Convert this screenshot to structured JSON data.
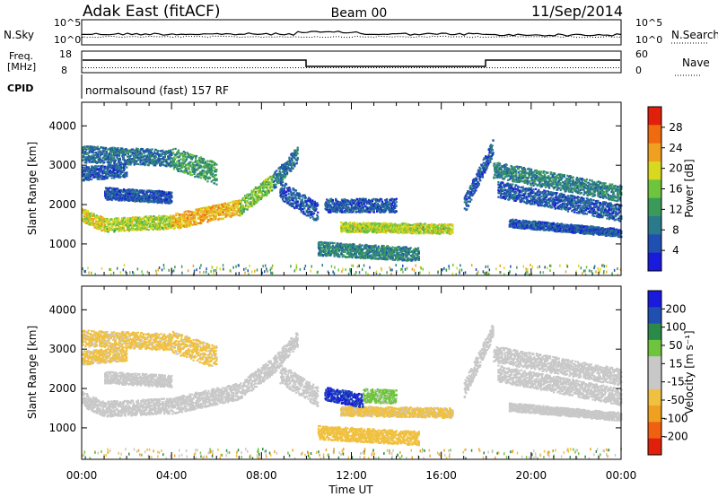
{
  "header": {
    "title": "Adak East (fitACF)",
    "beam": "Beam 00",
    "date": "11/Sep/2014"
  },
  "noise_panel": {
    "left_label": "N.Sky",
    "right_label": "N.Search",
    "left_ticks": [
      "10^5",
      "10^0"
    ],
    "right_ticks": [
      "10^5",
      "10^0"
    ]
  },
  "freq_panel": {
    "left_label_line1": "Freq.",
    "left_label_line2": "[MHz]",
    "right_label": "Nave",
    "left_ticks": [
      "18",
      "8"
    ],
    "right_ticks": [
      "60",
      "0"
    ]
  },
  "cpid": {
    "label": "CPID",
    "text": "normalsound (fast) 157 RF"
  },
  "chart_data": [
    {
      "type": "heatmap",
      "name": "power",
      "ylabel": "Slant Range [km]",
      "ylim": [
        200,
        4600
      ],
      "yticks": [
        "4000",
        "3000",
        "2000",
        "1000"
      ],
      "x_ticks": [
        "00:00",
        "04:00",
        "08:00",
        "12:00",
        "16:00",
        "20:00",
        "00:00"
      ],
      "colorbar": {
        "label": "Power [dB]",
        "ticks": [
          "28",
          "24",
          "20",
          "16",
          "12",
          "8",
          "4"
        ],
        "range": [
          0,
          32
        ],
        "colors": [
          "#1a1adc",
          "#1f4fb0",
          "#2a7a8c",
          "#3a9a5a",
          "#6ec43c",
          "#d8d820",
          "#f0a020",
          "#f06a10",
          "#e0200a"
        ]
      },
      "bands": [
        {
          "start": 0.0,
          "end": 1.0,
          "r0": 1750,
          "r1": 1500,
          "dr": 250,
          "v": 20
        },
        {
          "start": 1.0,
          "end": 4.0,
          "r0": 1500,
          "r1": 1580,
          "dr": 250,
          "v": 18
        },
        {
          "start": 4.0,
          "end": 7.0,
          "r0": 1580,
          "r1": 1950,
          "dr": 280,
          "v": 22
        },
        {
          "start": 7.0,
          "end": 8.5,
          "r0": 1950,
          "r1": 2600,
          "dr": 300,
          "v": 16
        },
        {
          "start": 8.5,
          "end": 9.6,
          "r0": 2600,
          "r1": 3300,
          "dr": 300,
          "v": 8
        },
        {
          "start": 1.0,
          "end": 4.0,
          "r0": 2300,
          "r1": 2200,
          "dr": 220,
          "v": 6
        },
        {
          "start": 0.0,
          "end": 4.0,
          "r0": 3300,
          "r1": 3200,
          "dr": 300,
          "v": 8
        },
        {
          "start": 4.0,
          "end": 6.0,
          "r0": 3200,
          "r1": 2800,
          "dr": 400,
          "v": 12
        },
        {
          "start": 0.0,
          "end": 2.0,
          "r0": 2800,
          "r1": 2900,
          "dr": 250,
          "v": 6
        },
        {
          "start": 8.8,
          "end": 10.5,
          "r0": 2400,
          "r1": 1800,
          "dr": 350,
          "v": 6
        },
        {
          "start": 11.5,
          "end": 16.5,
          "r0": 1450,
          "r1": 1400,
          "dr": 180,
          "v": 18
        },
        {
          "start": 10.8,
          "end": 14.0,
          "r0": 2000,
          "r1": 2000,
          "dr": 250,
          "v": 6
        },
        {
          "start": 10.5,
          "end": 15.0,
          "r0": 900,
          "r1": 750,
          "dr": 250,
          "v": 10
        },
        {
          "start": 17.0,
          "end": 18.3,
          "r0": 2000,
          "r1": 3500,
          "dr": 300,
          "v": 6
        },
        {
          "start": 18.3,
          "end": 24.0,
          "r0": 2900,
          "r1": 2300,
          "dr": 300,
          "v": 10
        },
        {
          "start": 18.5,
          "end": 24.0,
          "r0": 2400,
          "r1": 1800,
          "dr": 300,
          "v": 6
        },
        {
          "start": 19.0,
          "end": 24.0,
          "r0": 1550,
          "r1": 1300,
          "dr": 150,
          "v": 6
        }
      ]
    },
    {
      "type": "heatmap",
      "name": "velocity",
      "ylabel": "Slant Range [km]",
      "xlabel": "Time UT",
      "ylim": [
        200,
        4600
      ],
      "yticks": [
        "4000",
        "3000",
        "2000",
        "1000"
      ],
      "x_ticks": [
        "00:00",
        "04:00",
        "08:00",
        "12:00",
        "16:00",
        "20:00",
        "00:00"
      ],
      "colorbar": {
        "label": "Velocity [m s⁻¹]",
        "ticks": [
          "200",
          "100",
          "50",
          "15",
          "-15",
          "-50",
          "-100",
          "-200"
        ],
        "range": [
          -250,
          250
        ],
        "colors": [
          "#e0200a",
          "#f06010",
          "#f0a020",
          "#f0c040",
          "#c8c8c8",
          "#c8c8c8",
          "#6ec43c",
          "#2a8a4a",
          "#1f4fb0",
          "#1a1adc"
        ]
      },
      "bands": [
        {
          "start": 0.0,
          "end": 1.0,
          "r0": 1750,
          "r1": 1500,
          "dr": 280,
          "v": 0
        },
        {
          "start": 1.0,
          "end": 4.0,
          "r0": 1500,
          "r1": 1580,
          "dr": 280,
          "v": 0
        },
        {
          "start": 4.0,
          "end": 7.0,
          "r0": 1580,
          "r1": 1950,
          "dr": 300,
          "v": 0
        },
        {
          "start": 7.0,
          "end": 8.5,
          "r0": 1950,
          "r1": 2600,
          "dr": 300,
          "v": 0
        },
        {
          "start": 8.5,
          "end": 9.6,
          "r0": 2600,
          "r1": 3300,
          "dr": 300,
          "v": -10
        },
        {
          "start": 1.0,
          "end": 4.0,
          "r0": 2300,
          "r1": 2200,
          "dr": 220,
          "v": 0
        },
        {
          "start": 0.0,
          "end": 4.0,
          "r0": 3300,
          "r1": 3200,
          "dr": 300,
          "v": -60
        },
        {
          "start": 4.0,
          "end": 6.0,
          "r0": 3200,
          "r1": 2800,
          "dr": 400,
          "v": -60
        },
        {
          "start": 0.0,
          "end": 2.0,
          "r0": 2800,
          "r1": 2900,
          "dr": 250,
          "v": -60
        },
        {
          "start": 8.8,
          "end": 10.5,
          "r0": 2400,
          "r1": 1800,
          "dr": 350,
          "v": 0
        },
        {
          "start": 11.5,
          "end": 16.5,
          "r0": 1450,
          "r1": 1400,
          "dr": 180,
          "v": -60
        },
        {
          "start": 10.8,
          "end": 12.5,
          "r0": 1900,
          "r1": 1700,
          "dr": 250,
          "v": 200
        },
        {
          "start": 12.5,
          "end": 14.0,
          "r0": 1850,
          "r1": 1800,
          "dr": 250,
          "v": 60
        },
        {
          "start": 10.5,
          "end": 15.0,
          "r0": 900,
          "r1": 750,
          "dr": 250,
          "v": -70
        },
        {
          "start": 17.0,
          "end": 18.3,
          "r0": 2000,
          "r1": 3500,
          "dr": 300,
          "v": 0
        },
        {
          "start": 18.3,
          "end": 24.0,
          "r0": 2900,
          "r1": 2300,
          "dr": 300,
          "v": 0
        },
        {
          "start": 18.5,
          "end": 24.0,
          "r0": 2400,
          "r1": 1800,
          "dr": 300,
          "v": 0
        },
        {
          "start": 19.0,
          "end": 24.0,
          "r0": 1550,
          "r1": 1300,
          "dr": 150,
          "v": 0
        }
      ]
    }
  ]
}
